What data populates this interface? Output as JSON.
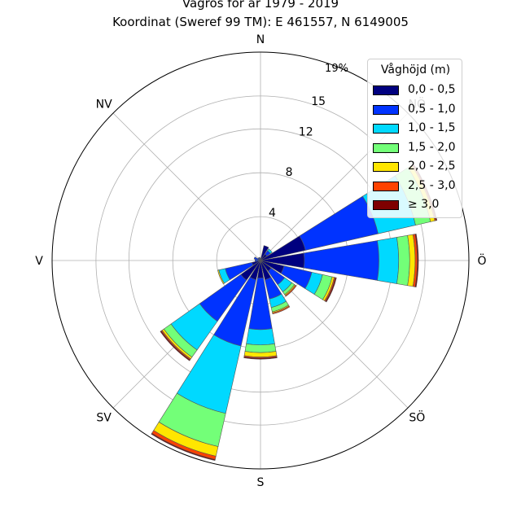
{
  "title": "Vågros för år 1979 - 2019",
  "subtitle": "Koordinat (Sweref 99 TM): E 461557, N 6149005",
  "chart_data": {
    "type": "wind-rose",
    "directions": [
      "N",
      "NNÖ",
      "NÖ",
      "ÖNÖ",
      "Ö",
      "ÖSÖ",
      "SÖ",
      "SSÖ",
      "S",
      "SSV",
      "SV",
      "VSV",
      "V",
      "VNV",
      "NV",
      "NNV"
    ],
    "direction_labels": [
      {
        "angle_deg": 0,
        "text": "N"
      },
      {
        "angle_deg": 45,
        "text": "NÖ"
      },
      {
        "angle_deg": 90,
        "text": "Ö"
      },
      {
        "angle_deg": 135,
        "text": "SÖ"
      },
      {
        "angle_deg": 180,
        "text": "S"
      },
      {
        "angle_deg": 225,
        "text": "SV"
      },
      {
        "angle_deg": 270,
        "text": "V"
      },
      {
        "angle_deg": 315,
        "text": "NV"
      }
    ],
    "radial_ticks": [
      4,
      8,
      12,
      15
    ],
    "radial_max_label": "19%",
    "rmax": 19,
    "legend_title": "Våghöjd (m)",
    "legend_position": "top-right",
    "bins": [
      "0,0 - 0,5",
      "0,5 - 1,0",
      "1,0 - 1,5",
      "1,5 - 2,0",
      "2,0 - 2,5",
      "2,5 - 3,0",
      "≥ 3,0"
    ],
    "colors": [
      "#00007f",
      "#0033ff",
      "#00d9ff",
      "#73ff78",
      "#ffe600",
      "#ff4200",
      "#7f0000"
    ],
    "cumulative": [
      [
        0.2,
        0.2,
        0.2,
        0.2,
        0.2,
        0.2,
        0.2
      ],
      [
        1.4,
        1.4,
        1.4,
        1.4,
        1.4,
        1.4,
        1.4
      ],
      [
        0.7,
        1.1,
        1.3,
        1.3,
        1.3,
        1.3,
        1.3
      ],
      [
        4.2,
        11.0,
        14.5,
        15.9,
        16.3,
        16.4,
        16.5
      ],
      [
        4.0,
        10.8,
        12.6,
        13.6,
        14.1,
        14.3,
        14.4
      ],
      [
        2.2,
        4.8,
        5.8,
        6.7,
        6.9,
        7.0,
        7.1
      ],
      [
        1.2,
        2.7,
        3.5,
        3.8,
        3.9,
        4.0,
        4.0
      ],
      [
        1.8,
        3.6,
        4.4,
        4.8,
        4.9,
        5.0,
        5.0
      ],
      [
        1.6,
        6.3,
        7.7,
        8.4,
        8.8,
        8.9,
        9.0
      ],
      [
        1.8,
        8.0,
        14.3,
        17.4,
        18.3,
        18.6,
        18.7
      ],
      [
        2.2,
        6.8,
        10.0,
        10.8,
        11.0,
        11.1,
        11.2
      ],
      [
        0.8,
        3.3,
        3.9,
        3.9,
        4.0,
        4.0,
        4.0
      ],
      [
        0.1,
        0.5,
        0.5,
        0.5,
        0.5,
        0.5,
        0.5
      ],
      [
        0.1,
        0.6,
        0.6,
        0.6,
        0.6,
        0.6,
        0.6
      ],
      [
        0.1,
        0.3,
        0.3,
        0.3,
        0.3,
        0.3,
        0.3
      ],
      [
        0.1,
        0.3,
        0.3,
        0.3,
        0.3,
        0.3,
        0.3
      ]
    ]
  }
}
